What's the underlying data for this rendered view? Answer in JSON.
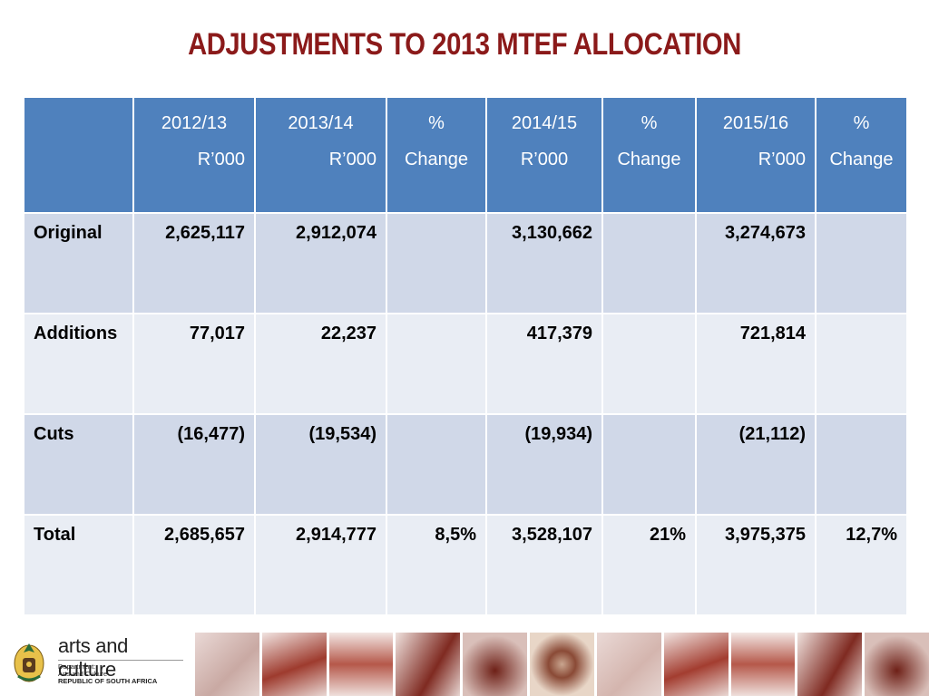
{
  "title": "ADJUSTMENTS TO 2013 MTEF ALLOCATION",
  "table": {
    "headers": [
      {
        "line1": "",
        "line2": ""
      },
      {
        "line1": "2012/13",
        "line2": "R’000"
      },
      {
        "line1": "2013/14",
        "line2": "R’000"
      },
      {
        "line1": "%",
        "line2": "Change"
      },
      {
        "line1": "2014/15",
        "line2": "R’000"
      },
      {
        "line1": "%",
        "line2": "Change"
      },
      {
        "line1": "2015/16",
        "line2": "R’000"
      },
      {
        "line1": "%",
        "line2": "Change"
      }
    ],
    "rows": [
      [
        "Original",
        "2,625,117",
        "2,912,074",
        "",
        "3,130,662",
        "",
        "3,274,673",
        ""
      ],
      [
        "Additions",
        "77,017",
        "22,237",
        "",
        "417,379",
        "",
        "721,814",
        ""
      ],
      [
        "Cuts",
        "(16,477)",
        "(19,534)",
        "",
        "(19,934)",
        "",
        "(21,112)",
        ""
      ],
      [
        "Total",
        "2,685,657",
        "2,914,777",
        "8,5%",
        "3,528,107",
        "21%",
        "3,975,375",
        "12,7%"
      ]
    ]
  },
  "footer": {
    "brand": "arts and culture",
    "dept_line1": "Department:",
    "dept_line2": "Arts and Culture",
    "dept_line3": "REPUBLIC OF SOUTH AFRICA"
  },
  "colors": {
    "title": "#8b1a1a",
    "header_bg": "#4f81bd",
    "row_odd": "#d0d8e8",
    "row_even": "#e9edf4"
  }
}
